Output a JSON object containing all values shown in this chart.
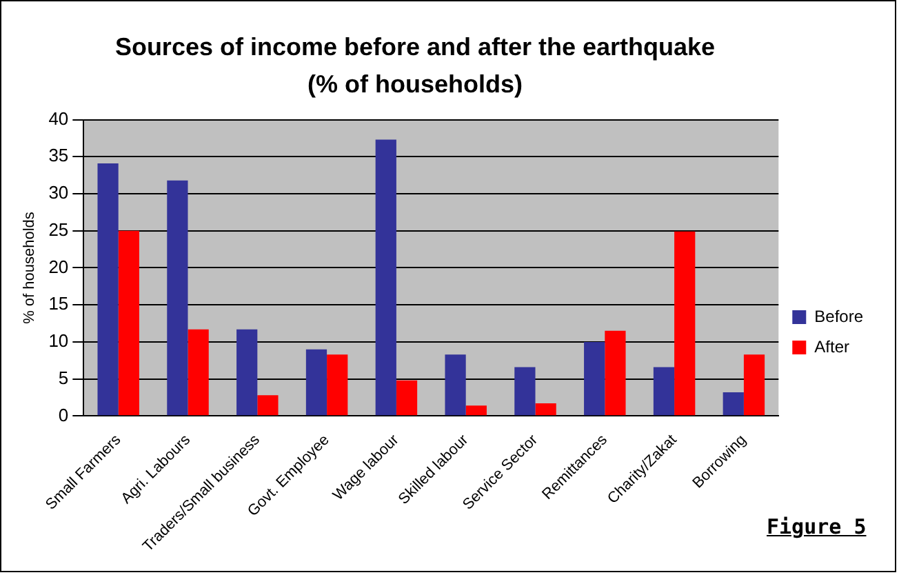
{
  "chart_data": {
    "type": "bar",
    "title": "Sources of income before and after the earthquake\n(% of households)",
    "ylabel": "% of households",
    "categories": [
      "Small Farmers",
      "Agri. Labours",
      "Traders/Small business",
      "Govt. Employee",
      "Wage labour",
      "Skilled labour",
      "Service Sector",
      "Remittances",
      "Charity/Zakat",
      "Borrowing"
    ],
    "series": [
      {
        "name": "Before",
        "color": "#333399",
        "values": [
          34.1,
          31.8,
          11.7,
          9.0,
          37.3,
          8.3,
          6.6,
          10.0,
          6.6,
          3.2
        ]
      },
      {
        "name": "After",
        "color": "#ff0000",
        "values": [
          25,
          11.7,
          2.8,
          8.3,
          4.8,
          1.4,
          1.7,
          11.5,
          24.9,
          8.3
        ]
      }
    ],
    "ylim": [
      0,
      40
    ],
    "yticks": [
      0,
      5,
      10,
      15,
      20,
      25,
      30,
      35,
      40
    ],
    "grid": "y",
    "legend": "right",
    "annotations": [
      "Figure 5"
    ]
  }
}
